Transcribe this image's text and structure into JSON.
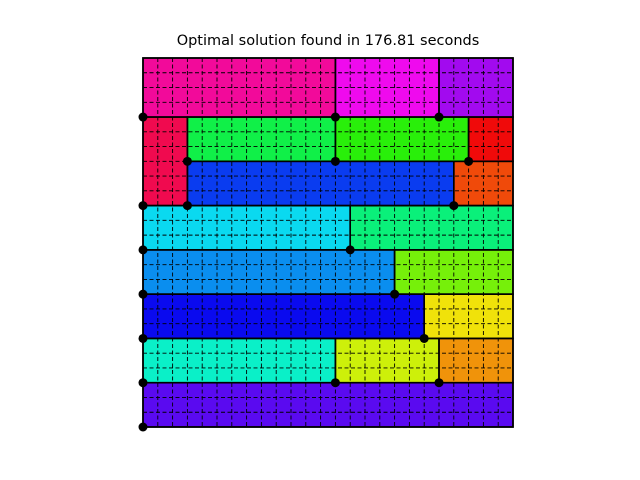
{
  "title": "Optimal solution found in 176.81 seconds",
  "grid": {
    "cols": 25,
    "rows": 25
  },
  "colors": {
    "border": "#000000",
    "grid_dash": "#000000",
    "dot": "#000000"
  },
  "rectangles": [
    {
      "name": "rect-top-magenta",
      "col": 0,
      "row": 0,
      "w": 13,
      "h": 4,
      "color": "#f20a9a"
    },
    {
      "name": "rect-top-fuchsia",
      "col": 13,
      "row": 0,
      "w": 7,
      "h": 4,
      "color": "#ef0aee"
    },
    {
      "name": "rect-top-violet",
      "col": 20,
      "row": 0,
      "w": 5,
      "h": 4,
      "color": "#a20aef"
    },
    {
      "name": "rect-crimson",
      "col": 0,
      "row": 4,
      "w": 3,
      "h": 6,
      "color": "#f00a4f"
    },
    {
      "name": "rect-green-left",
      "col": 3,
      "row": 4,
      "w": 10,
      "h": 3,
      "color": "#10f048"
    },
    {
      "name": "rect-green-right",
      "col": 13,
      "row": 4,
      "w": 9,
      "h": 3,
      "color": "#29ef0a"
    },
    {
      "name": "rect-red",
      "col": 22,
      "row": 4,
      "w": 3,
      "h": 3,
      "color": "#f00a0a"
    },
    {
      "name": "rect-royal-blue",
      "col": 3,
      "row": 7,
      "w": 18,
      "h": 3,
      "color": "#0a3cf0"
    },
    {
      "name": "rect-orange-red",
      "col": 21,
      "row": 7,
      "w": 4,
      "h": 3,
      "color": "#f04a0a"
    },
    {
      "name": "rect-cyan",
      "col": 0,
      "row": 10,
      "w": 14,
      "h": 3,
      "color": "#0ad9f0"
    },
    {
      "name": "rect-spring-green",
      "col": 14,
      "row": 10,
      "w": 11,
      "h": 3,
      "color": "#0af07a"
    },
    {
      "name": "rect-azure",
      "col": 0,
      "row": 13,
      "w": 17,
      "h": 3,
      "color": "#0a8eef"
    },
    {
      "name": "rect-lime",
      "col": 17,
      "row": 13,
      "w": 8,
      "h": 3,
      "color": "#76f00a"
    },
    {
      "name": "rect-blue",
      "col": 0,
      "row": 16,
      "w": 19,
      "h": 3,
      "color": "#0a0aef"
    },
    {
      "name": "rect-yellow",
      "col": 19,
      "row": 16,
      "w": 6,
      "h": 3,
      "color": "#f0e20a"
    },
    {
      "name": "rect-aquamarine",
      "col": 0,
      "row": 19,
      "w": 13,
      "h": 3,
      "color": "#0af0c8"
    },
    {
      "name": "rect-yellow-green",
      "col": 13,
      "row": 19,
      "w": 7,
      "h": 3,
      "color": "#cdf00a"
    },
    {
      "name": "rect-orange",
      "col": 20,
      "row": 19,
      "w": 5,
      "h": 3,
      "color": "#f0930a"
    },
    {
      "name": "rect-bottom-indigo",
      "col": 0,
      "row": 22,
      "w": 25,
      "h": 3,
      "color": "#5a0af0"
    }
  ],
  "dots": [
    {
      "col": 0,
      "row": 4
    },
    {
      "col": 13,
      "row": 4
    },
    {
      "col": 20,
      "row": 4
    },
    {
      "col": 3,
      "row": 7
    },
    {
      "col": 13,
      "row": 7
    },
    {
      "col": 22,
      "row": 7
    },
    {
      "col": 0,
      "row": 10
    },
    {
      "col": 3,
      "row": 10
    },
    {
      "col": 21,
      "row": 10
    },
    {
      "col": 0,
      "row": 13
    },
    {
      "col": 14,
      "row": 13
    },
    {
      "col": 0,
      "row": 16
    },
    {
      "col": 17,
      "row": 16
    },
    {
      "col": 0,
      "row": 19
    },
    {
      "col": 19,
      "row": 19
    },
    {
      "col": 0,
      "row": 22
    },
    {
      "col": 13,
      "row": 22
    },
    {
      "col": 20,
      "row": 22
    },
    {
      "col": 0,
      "row": 25
    }
  ]
}
